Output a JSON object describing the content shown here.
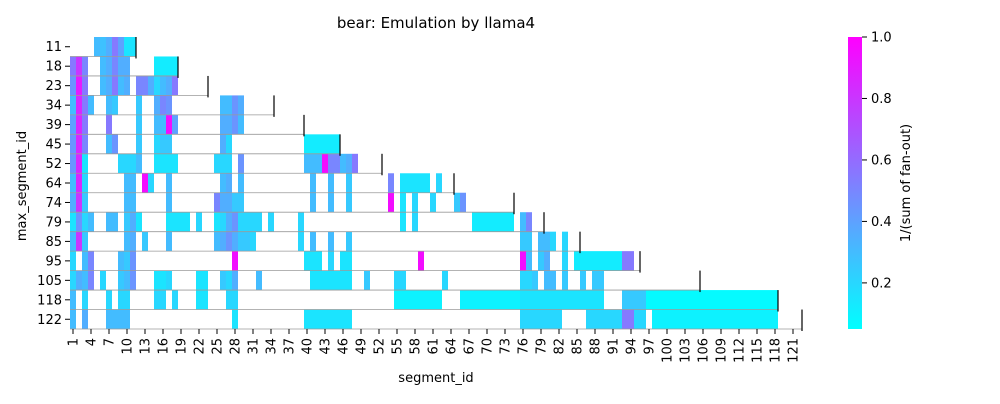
{
  "chart_data": {
    "type": "heatmap",
    "title": "bear: Emulation by llama4",
    "xlabel": "segment_id",
    "ylabel": "max_segment_id",
    "colorbar_label": "1/(sum of fan-out)",
    "colormap": "cool",
    "color_low": "#00ffff",
    "color_high": "#ff00ff",
    "vmin": 0.05,
    "vmax": 1.0,
    "colorbar_ticks": [
      {
        "value": 0.2,
        "label": "0.2"
      },
      {
        "value": 0.4,
        "label": "0.4"
      },
      {
        "value": 0.6,
        "label": "0.6"
      },
      {
        "value": 0.8,
        "label": "0.8"
      },
      {
        "value": 1.0,
        "label": "1.0"
      }
    ],
    "x_range": [
      1,
      122
    ],
    "x_tick_labels": [
      "1",
      "4",
      "7",
      "10",
      "13",
      "16",
      "19",
      "22",
      "25",
      "28",
      "31",
      "34",
      "37",
      "40",
      "43",
      "46",
      "49",
      "52",
      "55",
      "58",
      "61",
      "64",
      "67",
      "70",
      "73",
      "76",
      "79",
      "82",
      "85",
      "88",
      "91",
      "94",
      "97",
      "100",
      "103",
      "106",
      "109",
      "112",
      "115",
      "118",
      "121"
    ],
    "rows": [
      {
        "label": "11",
        "max_segment_id": 11,
        "cells": [
          [
            5,
            5,
            0.3
          ],
          [
            6,
            6,
            0.28
          ],
          [
            7,
            7,
            0.35
          ],
          [
            8,
            8,
            0.55
          ],
          [
            9,
            9,
            0.4
          ],
          [
            10,
            11,
            0.15
          ]
        ]
      },
      {
        "label": "18",
        "max_segment_id": 18,
        "cells": [
          [
            1,
            1,
            0.55
          ],
          [
            2,
            2,
            0.8
          ],
          [
            3,
            3,
            0.5
          ],
          [
            6,
            6,
            0.3
          ],
          [
            7,
            7,
            0.35
          ],
          [
            8,
            8,
            0.5
          ],
          [
            9,
            10,
            0.35
          ],
          [
            15,
            18,
            0.12
          ]
        ]
      },
      {
        "label": "23",
        "max_segment_id": 23,
        "cells": [
          [
            1,
            1,
            0.45
          ],
          [
            2,
            2,
            0.9
          ],
          [
            3,
            3,
            0.55
          ],
          [
            6,
            6,
            0.3
          ],
          [
            7,
            7,
            0.35
          ],
          [
            8,
            8,
            0.55
          ],
          [
            9,
            9,
            0.3
          ],
          [
            10,
            10,
            0.35
          ],
          [
            12,
            13,
            0.5
          ],
          [
            14,
            14,
            0.35
          ],
          [
            15,
            15,
            0.2
          ],
          [
            16,
            16,
            0.3
          ],
          [
            17,
            17,
            0.35
          ],
          [
            18,
            18,
            0.55
          ]
        ]
      },
      {
        "label": "34",
        "max_segment_id": 34,
        "cells": [
          [
            1,
            1,
            0.3
          ],
          [
            2,
            2,
            0.85
          ],
          [
            3,
            3,
            0.55
          ],
          [
            4,
            4,
            0.3
          ],
          [
            7,
            7,
            0.3
          ],
          [
            8,
            8,
            0.25
          ],
          [
            12,
            12,
            0.25
          ],
          [
            15,
            15,
            0.35
          ],
          [
            16,
            16,
            0.5
          ],
          [
            17,
            17,
            0.45
          ],
          [
            26,
            27,
            0.3
          ],
          [
            28,
            28,
            0.45
          ],
          [
            29,
            29,
            0.35
          ]
        ]
      },
      {
        "label": "39",
        "max_segment_id": 39,
        "cells": [
          [
            1,
            1,
            0.4
          ],
          [
            2,
            2,
            0.85
          ],
          [
            3,
            3,
            0.55
          ],
          [
            7,
            7,
            0.55
          ],
          [
            12,
            12,
            0.25
          ],
          [
            15,
            15,
            0.3
          ],
          [
            16,
            16,
            0.3
          ],
          [
            17,
            17,
            0.95
          ],
          [
            18,
            18,
            0.4
          ],
          [
            26,
            27,
            0.35
          ],
          [
            28,
            28,
            0.45
          ],
          [
            29,
            29,
            0.3
          ]
        ]
      },
      {
        "label": "45",
        "max_segment_id": 45,
        "cells": [
          [
            1,
            1,
            0.45
          ],
          [
            2,
            2,
            0.85
          ],
          [
            3,
            3,
            0.5
          ],
          [
            7,
            7,
            0.3
          ],
          [
            8,
            8,
            0.45
          ],
          [
            12,
            12,
            0.25
          ],
          [
            15,
            15,
            0.2
          ],
          [
            16,
            17,
            0.25
          ],
          [
            26,
            26,
            0.35
          ],
          [
            27,
            27,
            0.2
          ],
          [
            40,
            45,
            0.12
          ]
        ]
      },
      {
        "label": "52",
        "max_segment_id": 52,
        "cells": [
          [
            1,
            1,
            0.45
          ],
          [
            2,
            2,
            0.85
          ],
          [
            3,
            3,
            0.15
          ],
          [
            9,
            11,
            0.2
          ],
          [
            12,
            12,
            0.3
          ],
          [
            15,
            18,
            0.15
          ],
          [
            25,
            27,
            0.2
          ],
          [
            29,
            29,
            0.45
          ],
          [
            40,
            42,
            0.3
          ],
          [
            43,
            43,
            0.95
          ],
          [
            44,
            45,
            0.5
          ],
          [
            46,
            46,
            0.3
          ],
          [
            47,
            47,
            0.35
          ],
          [
            48,
            48,
            0.55
          ]
        ]
      },
      {
        "label": "64",
        "max_segment_id": 64,
        "cells": [
          [
            1,
            1,
            0.3
          ],
          [
            2,
            2,
            0.85
          ],
          [
            3,
            3,
            0.2
          ],
          [
            10,
            11,
            0.3
          ],
          [
            13,
            13,
            0.95
          ],
          [
            14,
            14,
            0.2
          ],
          [
            17,
            17,
            0.3
          ],
          [
            26,
            26,
            0.3
          ],
          [
            27,
            27,
            0.35
          ],
          [
            29,
            29,
            0.3
          ],
          [
            41,
            41,
            0.3
          ],
          [
            44,
            44,
            0.3
          ],
          [
            47,
            47,
            0.25
          ],
          [
            54,
            54,
            0.5
          ],
          [
            56,
            60,
            0.15
          ],
          [
            62,
            62,
            0.2
          ]
        ]
      },
      {
        "label": "74",
        "max_segment_id": 74,
        "cells": [
          [
            1,
            1,
            0.35
          ],
          [
            2,
            2,
            0.8
          ],
          [
            3,
            3,
            0.25
          ],
          [
            10,
            11,
            0.3
          ],
          [
            17,
            17,
            0.3
          ],
          [
            25,
            25,
            0.5
          ],
          [
            26,
            26,
            0.35
          ],
          [
            27,
            27,
            0.35
          ],
          [
            28,
            29,
            0.25
          ],
          [
            41,
            41,
            0.3
          ],
          [
            44,
            44,
            0.3
          ],
          [
            47,
            47,
            0.25
          ],
          [
            54,
            54,
            0.95
          ],
          [
            56,
            56,
            0.15
          ],
          [
            58,
            58,
            0.2
          ],
          [
            61,
            61,
            0.2
          ],
          [
            65,
            65,
            0.25
          ],
          [
            66,
            66,
            0.45
          ]
        ]
      },
      {
        "label": "79",
        "max_segment_id": 79,
        "cells": [
          [
            1,
            1,
            0.15
          ],
          [
            2,
            2,
            0.45
          ],
          [
            3,
            3,
            0.2
          ],
          [
            4,
            4,
            0.3
          ],
          [
            7,
            8,
            0.3
          ],
          [
            10,
            10,
            0.25
          ],
          [
            11,
            11,
            0.35
          ],
          [
            12,
            12,
            0.15
          ],
          [
            17,
            20,
            0.15
          ],
          [
            22,
            22,
            0.2
          ],
          [
            25,
            25,
            0.15
          ],
          [
            26,
            26,
            0.2
          ],
          [
            27,
            27,
            0.35
          ],
          [
            28,
            28,
            0.45
          ],
          [
            29,
            32,
            0.2
          ],
          [
            34,
            34,
            0.2
          ],
          [
            39,
            39,
            0.2
          ],
          [
            56,
            56,
            0.15
          ],
          [
            58,
            58,
            0.2
          ],
          [
            68,
            74,
            0.12
          ],
          [
            76,
            76,
            0.3
          ],
          [
            77,
            77,
            0.5
          ]
        ]
      },
      {
        "label": "85",
        "max_segment_id": 85,
        "cells": [
          [
            1,
            1,
            0.3
          ],
          [
            2,
            2,
            0.8
          ],
          [
            3,
            3,
            0.25
          ],
          [
            10,
            10,
            0.3
          ],
          [
            11,
            11,
            0.35
          ],
          [
            13,
            13,
            0.25
          ],
          [
            17,
            17,
            0.3
          ],
          [
            25,
            25,
            0.3
          ],
          [
            26,
            26,
            0.35
          ],
          [
            27,
            27,
            0.45
          ],
          [
            28,
            28,
            0.35
          ],
          [
            29,
            30,
            0.25
          ],
          [
            31,
            31,
            0.2
          ],
          [
            39,
            39,
            0.2
          ],
          [
            41,
            41,
            0.3
          ],
          [
            44,
            44,
            0.3
          ],
          [
            47,
            47,
            0.25
          ],
          [
            76,
            77,
            0.25
          ],
          [
            79,
            80,
            0.3
          ],
          [
            81,
            81,
            0.2
          ],
          [
            83,
            83,
            0.2
          ]
        ]
      },
      {
        "label": "95",
        "max_segment_id": 95,
        "cells": [
          [
            1,
            1,
            0.2
          ],
          [
            3,
            3,
            0.3
          ],
          [
            4,
            4,
            0.5
          ],
          [
            9,
            9,
            0.3
          ],
          [
            10,
            10,
            0.25
          ],
          [
            11,
            11,
            0.45
          ],
          [
            28,
            28,
            0.95
          ],
          [
            40,
            42,
            0.15
          ],
          [
            44,
            44,
            0.2
          ],
          [
            46,
            47,
            0.15
          ],
          [
            59,
            59,
            0.95
          ],
          [
            76,
            76,
            0.95
          ],
          [
            77,
            77,
            0.3
          ],
          [
            79,
            79,
            0.25
          ],
          [
            80,
            80,
            0.35
          ],
          [
            83,
            83,
            0.2
          ],
          [
            85,
            92,
            0.12
          ],
          [
            93,
            94,
            0.55
          ]
        ]
      },
      {
        "label": "105",
        "max_segment_id": 105,
        "cells": [
          [
            1,
            1,
            0.2
          ],
          [
            2,
            2,
            0.35
          ],
          [
            3,
            3,
            0.3
          ],
          [
            4,
            4,
            0.5
          ],
          [
            6,
            6,
            0.2
          ],
          [
            9,
            9,
            0.25
          ],
          [
            10,
            10,
            0.3
          ],
          [
            11,
            11,
            0.45
          ],
          [
            15,
            16,
            0.15
          ],
          [
            17,
            17,
            0.2
          ],
          [
            22,
            23,
            0.15
          ],
          [
            26,
            26,
            0.25
          ],
          [
            27,
            27,
            0.2
          ],
          [
            28,
            28,
            0.35
          ],
          [
            32,
            32,
            0.3
          ],
          [
            41,
            47,
            0.15
          ],
          [
            50,
            50,
            0.25
          ],
          [
            55,
            56,
            0.2
          ],
          [
            63,
            63,
            0.2
          ],
          [
            76,
            77,
            0.2
          ],
          [
            78,
            78,
            0.25
          ],
          [
            80,
            81,
            0.3
          ],
          [
            83,
            83,
            0.25
          ],
          [
            86,
            86,
            0.25
          ],
          [
            88,
            89,
            0.25
          ]
        ]
      },
      {
        "label": "118",
        "max_segment_id": 118,
        "cells": [
          [
            1,
            1,
            0.3
          ],
          [
            3,
            3,
            0.2
          ],
          [
            7,
            7,
            0.2
          ],
          [
            9,
            10,
            0.2
          ],
          [
            15,
            16,
            0.2
          ],
          [
            18,
            18,
            0.2
          ],
          [
            22,
            23,
            0.15
          ],
          [
            27,
            28,
            0.2
          ],
          [
            55,
            62,
            0.1
          ],
          [
            66,
            75,
            0.1
          ],
          [
            76,
            89,
            0.15
          ],
          [
            93,
            96,
            0.25
          ],
          [
            97,
            118,
            0.07
          ]
        ]
      },
      {
        "label": "122",
        "max_segment_id": 122,
        "cells": [
          [
            1,
            1,
            0.3
          ],
          [
            3,
            3,
            0.35
          ],
          [
            7,
            10,
            0.3
          ],
          [
            28,
            28,
            0.15
          ],
          [
            40,
            47,
            0.15
          ],
          [
            76,
            82,
            0.2
          ],
          [
            87,
            92,
            0.2
          ],
          [
            93,
            94,
            0.55
          ],
          [
            95,
            96,
            0.2
          ],
          [
            98,
            118,
            0.1
          ]
        ]
      }
    ]
  }
}
